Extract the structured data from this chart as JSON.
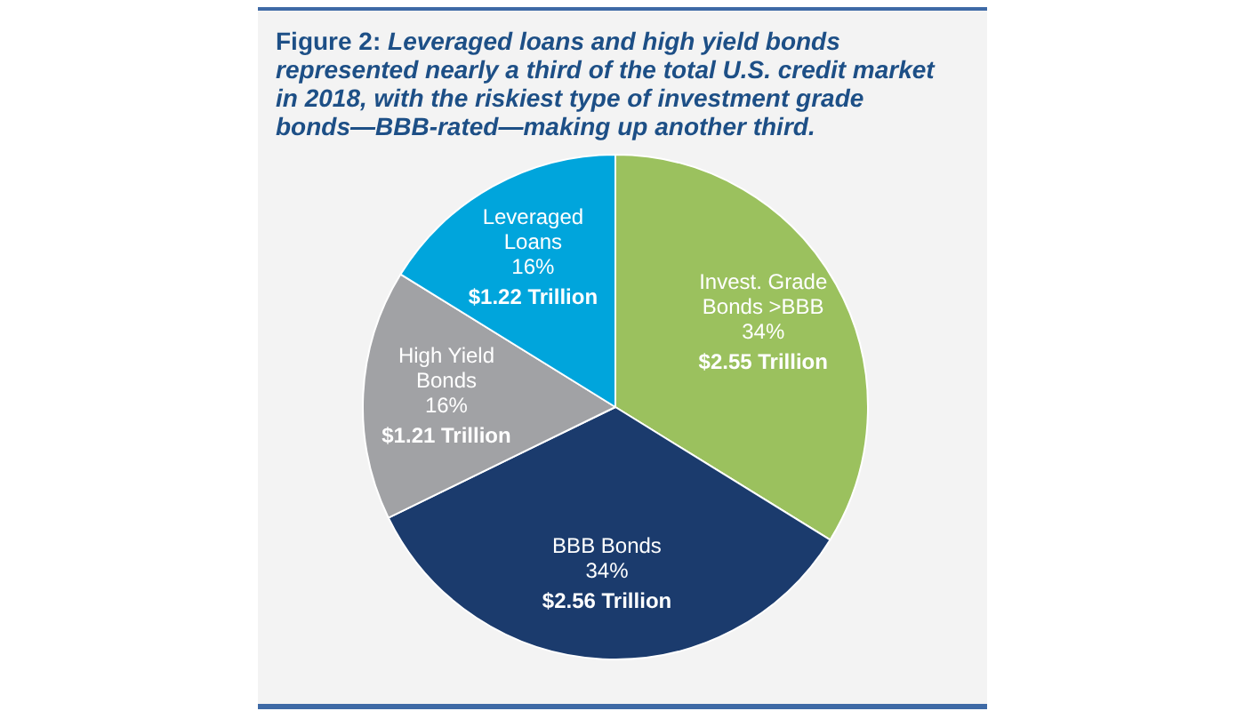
{
  "chart_data": {
    "type": "pie",
    "title": "Figure 2: Leveraged loans and high yield bonds represented nearly a third of the total U.S. credit market in 2018, with the riskiest type of investment grade bonds—BBB-rated—making up another third.",
    "categories": [
      "Invest. Grade\nBonds >BBB",
      "BBB Bonds",
      "High Yield\nBonds",
      "Leveraged\nLoans"
    ],
    "values": [
      2.55,
      2.56,
      1.21,
      1.22
    ],
    "value_labels": [
      "34%\n$2.55 Trillion",
      "34%\n$2.56 Trillion",
      "16%\n$1.21 Trillion",
      "16%\n$1.22 Trillion"
    ],
    "colors": [
      "#9bc15e",
      "#1b3b6d",
      "#a1a2a5",
      "#00a5dc"
    ]
  }
}
